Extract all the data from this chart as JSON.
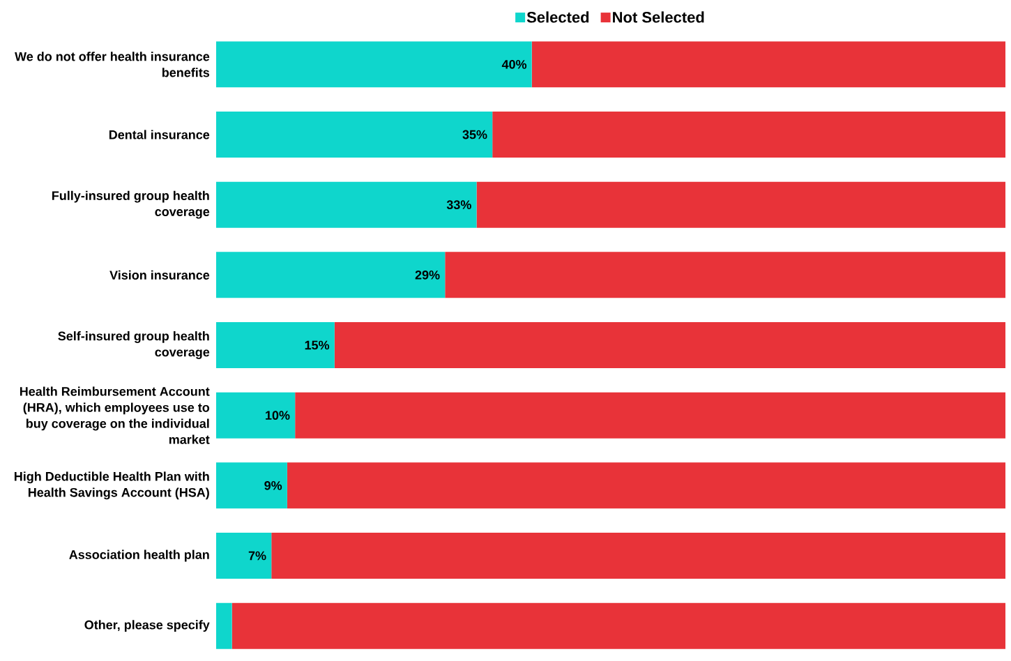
{
  "chart_data": {
    "type": "bar",
    "orientation": "horizontal",
    "stacked": true,
    "categories": [
      "We do not offer health insurance benefits",
      "Dental insurance",
      "Fully-insured group health coverage",
      "Vision insurance",
      "Self-insured group health coverage",
      "Health Reimbursement Account (HRA), which employees use to buy coverage on the individual market",
      "High Deductible Health Plan with Health Savings Account (HSA)",
      "Association health plan",
      "Other, please specify"
    ],
    "series": [
      {
        "name": "Selected",
        "color": "#0fd6cc",
        "values": [
          40,
          35,
          33,
          29,
          15,
          10,
          9,
          7,
          2
        ],
        "value_labels": [
          "40%",
          "35%",
          "33%",
          "29%",
          "15%",
          "10%",
          "9%",
          "7%",
          null
        ]
      },
      {
        "name": "Not Selected",
        "color": "#e83339",
        "values": [
          60,
          65,
          67,
          71,
          85,
          90,
          91,
          93,
          98
        ]
      }
    ],
    "tick_labels": "y",
    "legend": "top"
  }
}
